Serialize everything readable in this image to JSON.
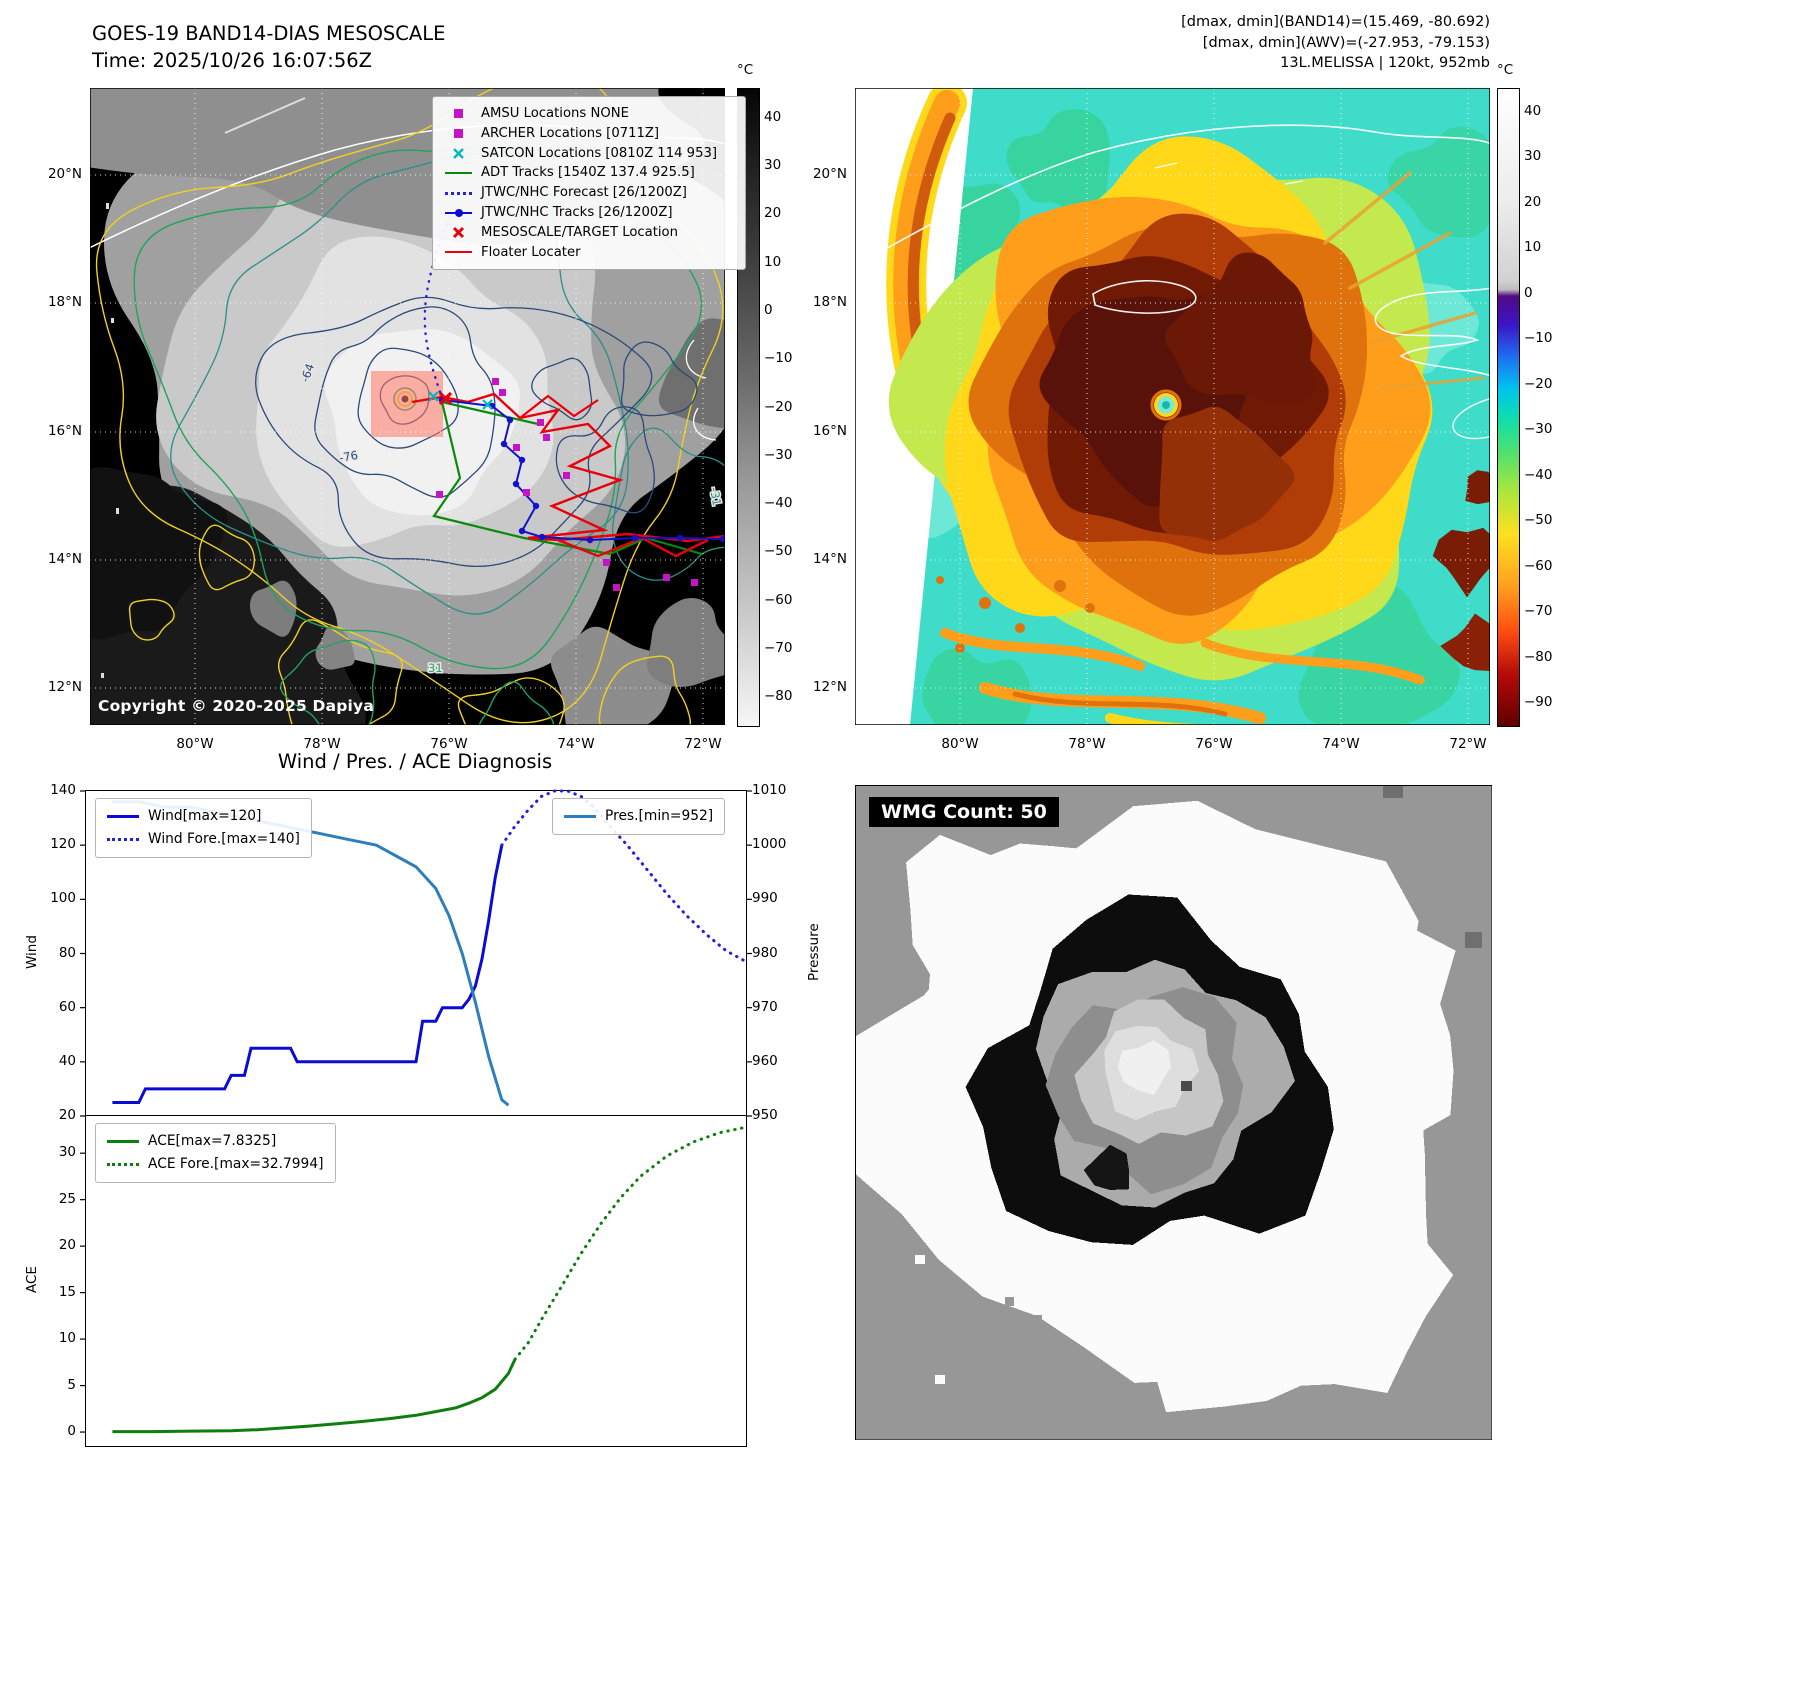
{
  "colors": {
    "wind_blue": "#0b0bd6",
    "forecast_blue": "#2222dd",
    "pres_blue": "#2e7ebc",
    "ace_green": "#0f7d0f",
    "track_red": "#e8000b",
    "adt_green": "#0a8a0a",
    "magenta": "#c513c5",
    "cyan": "#00b8bd"
  },
  "panel1": {
    "title_line1": "GOES-19 BAND14-DIAS MESOSCALE",
    "title_line2": "Time: 2025/10/26 16:07:56Z",
    "copyright": "Copyright © 2020-2025 Dapiya",
    "colorbar": {
      "unit": "°C",
      "vmax": 46,
      "vmin": -86,
      "ticks": [
        40,
        30,
        20,
        10,
        0,
        -10,
        -20,
        -30,
        -40,
        -50,
        -60,
        -70,
        -80
      ]
    },
    "lat_ticks": [
      "20°N",
      "18°N",
      "16°N",
      "14°N",
      "12°N"
    ],
    "lon_ticks": [
      "80°W",
      "78°W",
      "76°W",
      "74°W",
      "72°W"
    ],
    "legend": [
      {
        "label": "AMSU Locations NONE",
        "marker": "square-magenta"
      },
      {
        "label": "ARCHER Locations [0711Z]",
        "marker": "square-magenta"
      },
      {
        "label": "SATCON Locations [0810Z 114 953]",
        "marker": "x-cyan"
      },
      {
        "label": "ADT Tracks [1540Z 137.4 925.5]",
        "marker": "line-green"
      },
      {
        "label": "JTWC/NHC Forecast [26/1200Z]",
        "marker": "dotted-blue"
      },
      {
        "label": "JTWC/NHC Tracks [26/1200Z]",
        "marker": "line-dot-blue"
      },
      {
        "label": "MESOSCALE/TARGET Location",
        "marker": "x-red"
      },
      {
        "label": "Floater Locater",
        "marker": "line-red"
      }
    ],
    "contour_labels": [
      "-64",
      "-76",
      "31",
      "-31"
    ]
  },
  "panel2": {
    "header_lines": [
      "[dmax, dmin](BAND14)=(15.469, -80.692)",
      "[dmax, dmin](AWV)=(-27.953, -79.153)",
      "13L.MELISSA | 120kt, 952mb"
    ],
    "colorbar": {
      "unit": "°C",
      "vmax": 45,
      "vmin": -95,
      "ticks": [
        40,
        30,
        20,
        10,
        0,
        -10,
        -20,
        -30,
        -40,
        -50,
        -60,
        -70,
        -80,
        -90
      ]
    },
    "lat_ticks": [
      "20°N",
      "18°N",
      "16°N",
      "14°N",
      "12°N"
    ],
    "lon_ticks": [
      "80°W",
      "78°W",
      "76°W",
      "74°W",
      "72°W"
    ]
  },
  "panel4": {
    "wmg_label": "WMG Count: 50"
  },
  "chart_data": [
    {
      "type": "line",
      "title": "Wind / Pres. / ACE Diagnosis",
      "ylabel_left": "Wind",
      "ylabel_right": "Pressure",
      "ylim_left": [
        20,
        140
      ],
      "ylim_right": [
        950,
        1010
      ],
      "yticks_left": [
        20,
        40,
        60,
        80,
        100,
        120,
        140
      ],
      "yticks_right": [
        950,
        960,
        970,
        980,
        990,
        1000,
        1010
      ],
      "legend_position": "upper-left and upper-right",
      "series": [
        {
          "name": "Wind[max=120]",
          "style": "solid",
          "color": "#0b0bd6",
          "axis": "left",
          "x": [
            4,
            8,
            9,
            15,
            16,
            21,
            22,
            24,
            25,
            31,
            32,
            41,
            42,
            50,
            51,
            53,
            54,
            57,
            58,
            59,
            60,
            61,
            62,
            63
          ],
          "y": [
            25,
            25,
            30,
            30,
            30,
            30,
            35,
            35,
            45,
            45,
            40,
            40,
            40,
            40,
            55,
            55,
            60,
            60,
            63,
            68,
            78,
            92,
            108,
            120
          ]
        },
        {
          "name": "Wind Fore.[max=140]",
          "style": "dotted",
          "color": "#2222dd",
          "axis": "left",
          "x": [
            63,
            65,
            67,
            69,
            71,
            73,
            75,
            77,
            79,
            82,
            85,
            88,
            91,
            94,
            97,
            100
          ],
          "y": [
            120,
            127,
            133,
            138,
            140,
            140,
            138,
            134,
            128,
            120,
            111,
            102,
            94,
            87,
            81,
            77
          ]
        },
        {
          "name": "Pres.[min=952]",
          "style": "solid",
          "color": "#2e7ebc",
          "axis": "right",
          "x": [
            4,
            8,
            12,
            16,
            20,
            24,
            28,
            32,
            36,
            40,
            44,
            47,
            50,
            53,
            55,
            57,
            59,
            61,
            63,
            64
          ],
          "y": [
            1008,
            1008,
            1007,
            1007,
            1006,
            1005,
            1004,
            1003,
            1002,
            1001,
            1000,
            998,
            996,
            992,
            987,
            980,
            971,
            961,
            953,
            952
          ]
        }
      ]
    },
    {
      "type": "line",
      "ylabel_left": "ACE",
      "ylim_left": [
        -1.5,
        34
      ],
      "yticks_left": [
        0,
        5,
        10,
        15,
        20,
        25,
        30
      ],
      "legend_position": "upper-left",
      "series": [
        {
          "name": "ACE[max=7.8325]",
          "style": "solid",
          "color": "#0f7d0f",
          "axis": "left",
          "x": [
            4,
            10,
            16,
            22,
            26,
            30,
            34,
            38,
            42,
            46,
            50,
            53,
            56,
            58,
            60,
            62,
            64,
            65
          ],
          "y": [
            0.05,
            0.05,
            0.1,
            0.15,
            0.25,
            0.45,
            0.65,
            0.9,
            1.15,
            1.45,
            1.8,
            2.2,
            2.6,
            3.1,
            3.7,
            4.6,
            6.3,
            7.83
          ]
        },
        {
          "name": "ACE Fore.[max=32.7994]",
          "style": "dotted",
          "color": "#0f7d0f",
          "axis": "left",
          "x": [
            65,
            67,
            69,
            72,
            75,
            78,
            81,
            84,
            88,
            92,
            96,
            100
          ],
          "y": [
            7.83,
            9.6,
            12.1,
            15.6,
            19.2,
            22.4,
            25.2,
            27.5,
            29.7,
            31.2,
            32.2,
            32.8
          ]
        }
      ]
    }
  ]
}
